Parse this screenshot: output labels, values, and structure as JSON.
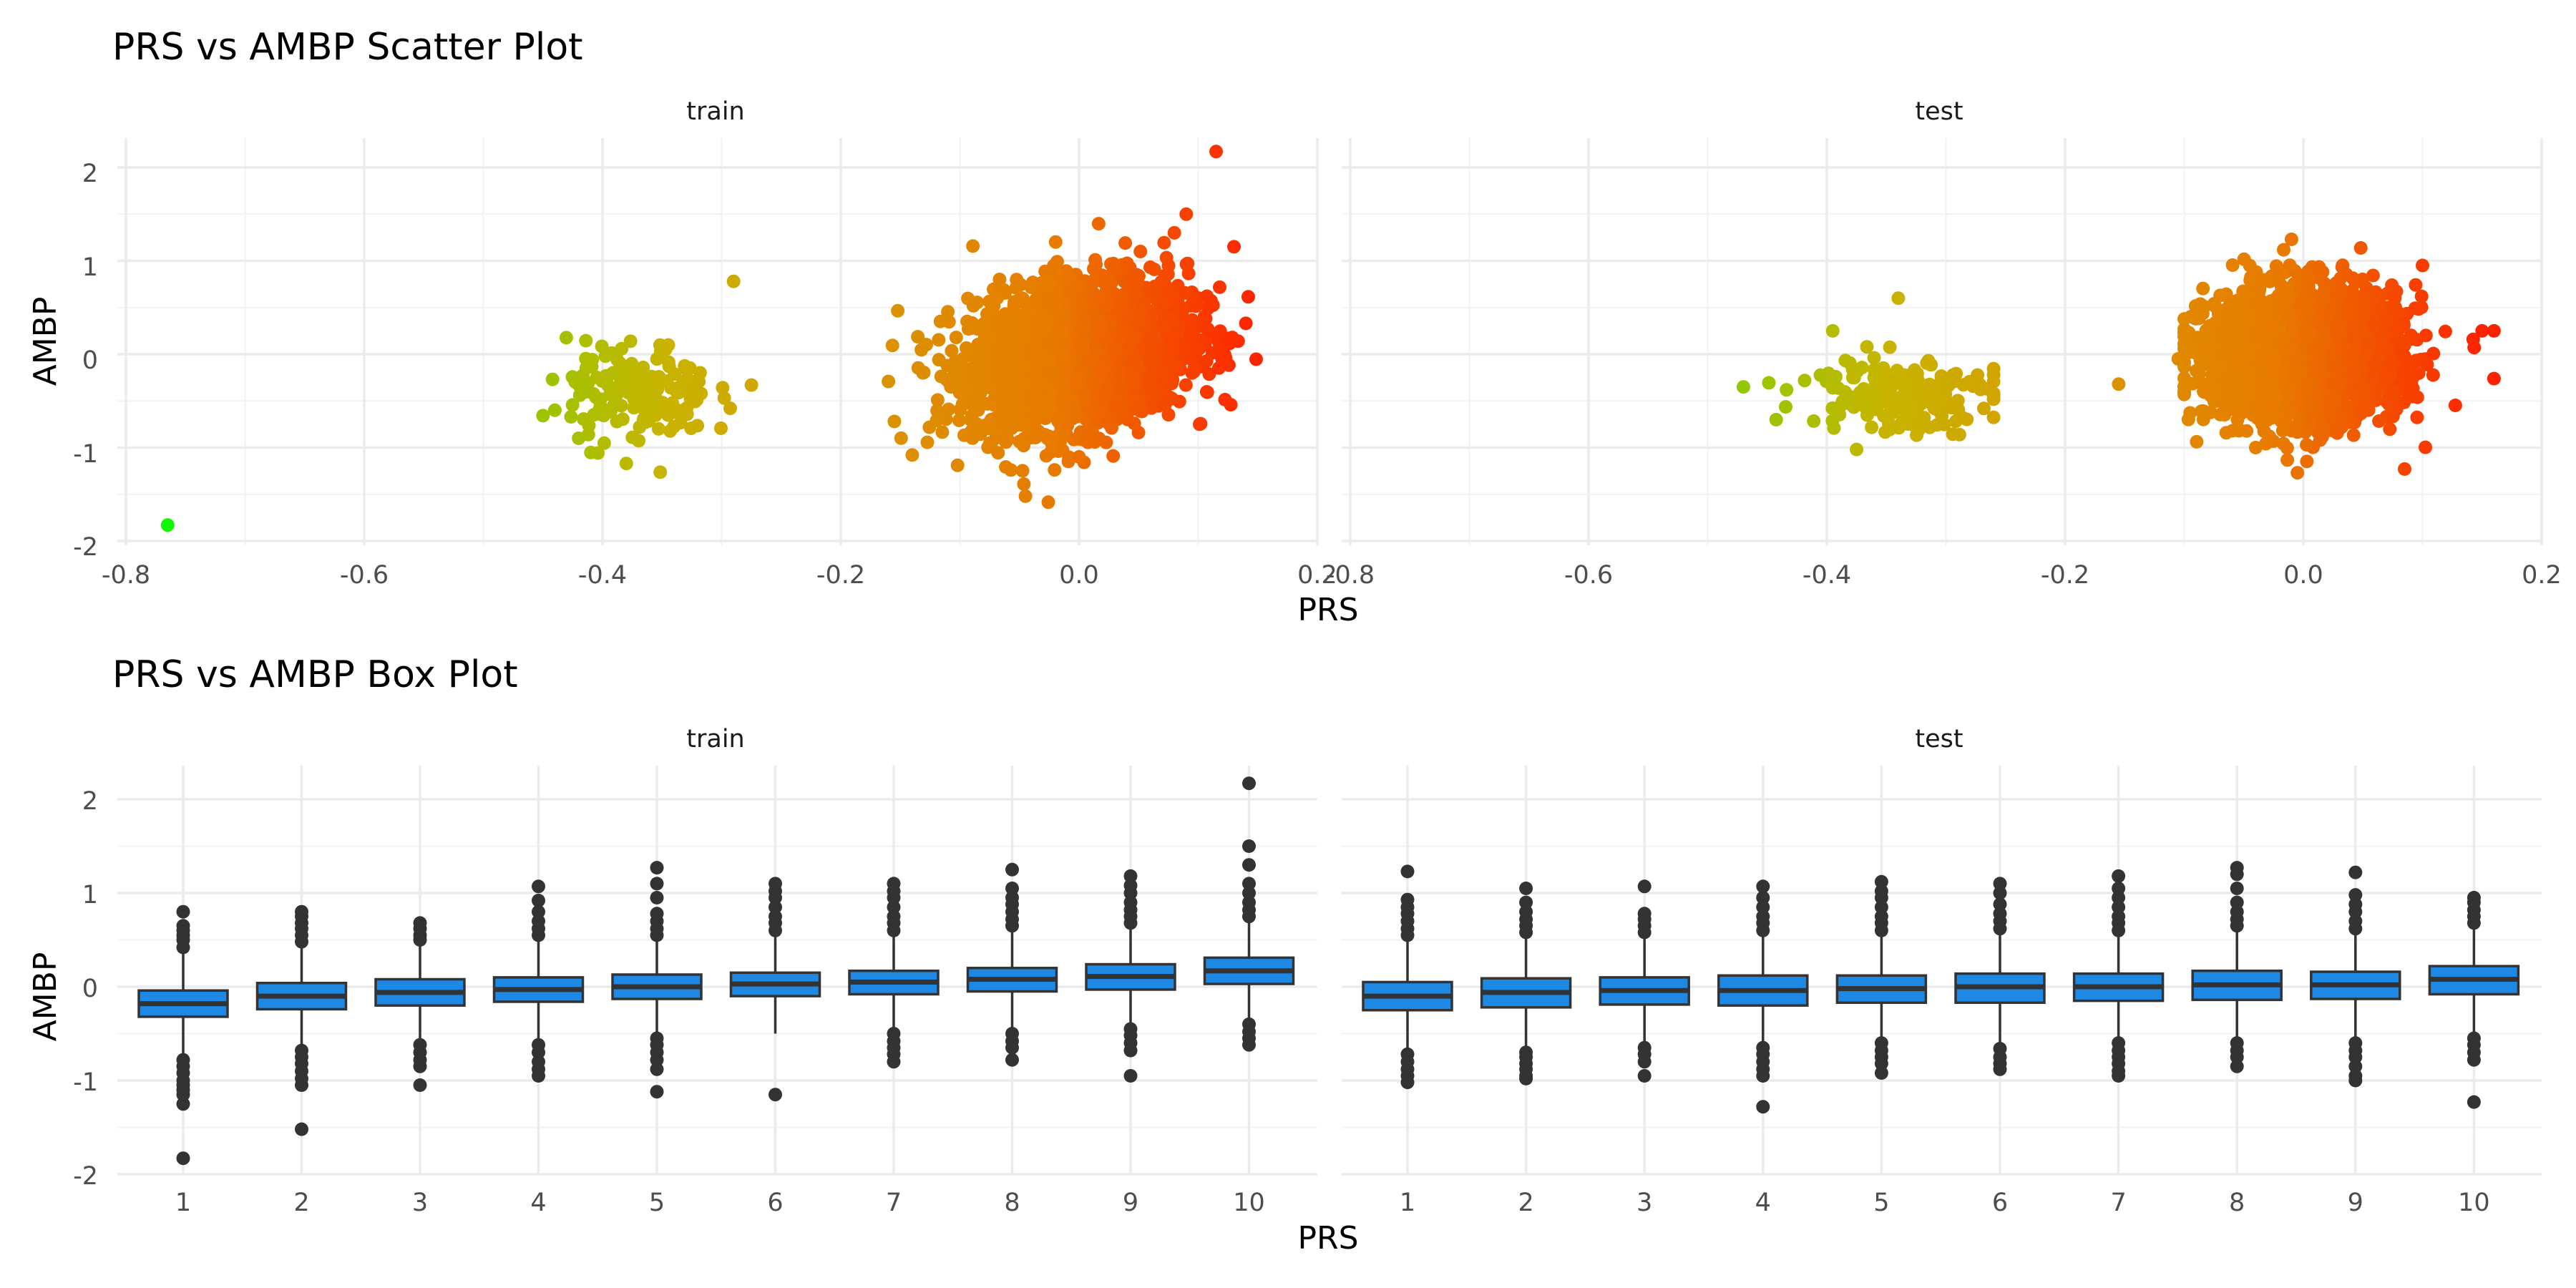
{
  "chart_data": [
    {
      "type": "scatter",
      "title": "PRS vs AMBP Scatter Plot",
      "xlabel": "PRS",
      "ylabel": "AMBP",
      "xlim": [
        -0.8,
        0.2
      ],
      "ylim": [
        -2,
        2
      ],
      "x_ticks": [
        "-0.8",
        "-0.6",
        "-0.4",
        "-0.2",
        "0.0",
        "0.2"
      ],
      "y_ticks": [
        "-2",
        "-1",
        "0",
        "1",
        "2"
      ],
      "grid": true,
      "color_gradient": [
        "#00ff00",
        "#c8b400",
        "#e87a00",
        "#ff2200"
      ],
      "panels": [
        {
          "label": "train",
          "clusters": [
            {
              "description": "main",
              "x_mean": 0.0,
              "x_sd": 0.045,
              "y_mean": 0.0,
              "y_sd": 0.38,
              "slope": 2.2,
              "x_range": [
                -0.16,
                0.15
              ]
            },
            {
              "description": "secondary",
              "x_mean": -0.37,
              "x_sd": 0.03,
              "y_mean": -0.42,
              "y_sd": 0.27,
              "x_range": [
                -0.45,
                -0.27
              ]
            }
          ],
          "points": [
            [
              -0.765,
              -1.83
            ],
            [
              0.115,
              2.17
            ],
            [
              0.09,
              1.5
            ],
            [
              -0.29,
              0.78
            ],
            [
              -0.045,
              -1.52
            ],
            [
              -0.38,
              -1.17
            ],
            [
              -0.14,
              -1.08
            ],
            [
              -0.275,
              -0.33
            ],
            [
              0.14,
              0.33
            ],
            [
              0.13,
              1.15
            ],
            [
              -0.44,
              -0.6
            ],
            [
              0.0,
              -1.1
            ],
            [
              -0.155,
              -0.72
            ],
            [
              0.12,
              -0.05
            ],
            [
              0.08,
              1.3
            ],
            [
              -0.42,
              -0.9
            ]
          ]
        },
        {
          "label": "test",
          "clusters": [
            {
              "description": "main",
              "x_mean": 0.0,
              "x_sd": 0.04,
              "y_mean": 0.0,
              "y_sd": 0.34,
              "slope": 0.3,
              "x_range": [
                -0.1,
                0.16
              ]
            },
            {
              "description": "secondary",
              "x_mean": -0.34,
              "x_sd": 0.04,
              "y_mean": -0.42,
              "y_sd": 0.22,
              "x_range": [
                -0.47,
                -0.26
              ]
            }
          ],
          "points": [
            [
              -0.005,
              -1.27
            ],
            [
              0.085,
              -1.23
            ],
            [
              -0.34,
              0.6
            ],
            [
              -0.375,
              -1.02
            ],
            [
              -0.47,
              -0.35
            ],
            [
              -0.26,
              -0.22
            ],
            [
              -0.155,
              -0.32
            ],
            [
              0.16,
              0.25
            ],
            [
              0.15,
              0.25
            ],
            [
              -0.395,
              0.25
            ],
            [
              -0.01,
              1.23
            ],
            [
              0.1,
              0.95
            ],
            [
              -0.105,
              -0.05
            ],
            [
              -0.04,
              -1.0
            ]
          ]
        }
      ]
    },
    {
      "type": "box",
      "title": "PRS vs AMBP Box Plot",
      "xlabel": "PRS",
      "ylabel": "AMBP",
      "categories": [
        "1",
        "2",
        "3",
        "4",
        "5",
        "6",
        "7",
        "8",
        "9",
        "10"
      ],
      "ylim": [
        -2,
        2
      ],
      "y_ticks": [
        "-2",
        "-1",
        "0",
        "1",
        "2"
      ],
      "grid": true,
      "box_fill": "#1e88e5",
      "panels": [
        {
          "label": "train",
          "boxes": [
            {
              "q1": -0.32,
              "median": -0.18,
              "q3": -0.04,
              "whisker_low": -0.72,
              "whisker_high": 0.35,
              "outliers_high": [
                0.42,
                0.5,
                0.55,
                0.6,
                0.65,
                0.8
              ],
              "outliers_low": [
                -0.78,
                -0.85,
                -0.92,
                -1.0,
                -1.05,
                -1.1,
                -1.15,
                -1.25,
                -1.83
              ]
            },
            {
              "q1": -0.24,
              "median": -0.1,
              "q3": 0.04,
              "whisker_low": -0.62,
              "whisker_high": 0.42,
              "outliers_high": [
                0.48,
                0.55,
                0.62,
                0.68,
                0.75,
                0.8
              ],
              "outliers_low": [
                -0.68,
                -0.75,
                -0.82,
                -0.9,
                -0.98,
                -1.05,
                -1.52
              ]
            },
            {
              "q1": -0.2,
              "median": -0.06,
              "q3": 0.08,
              "whisker_low": -0.55,
              "whisker_high": 0.45,
              "outliers_high": [
                0.5,
                0.55,
                0.62,
                0.68
              ],
              "outliers_low": [
                -0.62,
                -0.7,
                -0.78,
                -0.85,
                -1.05
              ]
            },
            {
              "q1": -0.16,
              "median": -0.03,
              "q3": 0.1,
              "whisker_low": -0.55,
              "whisker_high": 0.48,
              "outliers_high": [
                0.55,
                0.62,
                0.7,
                0.8,
                0.92,
                1.07
              ],
              "outliers_low": [
                -0.62,
                -0.7,
                -0.8,
                -0.88,
                -0.95
              ]
            },
            {
              "q1": -0.13,
              "median": 0.0,
              "q3": 0.13,
              "whisker_low": -0.5,
              "whisker_high": 0.5,
              "outliers_high": [
                0.55,
                0.62,
                0.7,
                0.78,
                0.95,
                1.1,
                1.27
              ],
              "outliers_low": [
                -0.55,
                -0.62,
                -0.7,
                -0.78,
                -0.88,
                -1.12
              ]
            },
            {
              "q1": -0.1,
              "median": 0.03,
              "q3": 0.15,
              "whisker_low": -0.5,
              "whisker_high": 0.55,
              "outliers_high": [
                0.6,
                0.68,
                0.75,
                0.85,
                0.95,
                1.02,
                1.1
              ],
              "outliers_low": [
                -1.15
              ]
            },
            {
              "q1": -0.08,
              "median": 0.05,
              "q3": 0.17,
              "whisker_low": -0.45,
              "whisker_high": 0.55,
              "outliers_high": [
                0.6,
                0.68,
                0.75,
                0.85,
                0.95,
                1.02,
                1.1
              ],
              "outliers_low": [
                -0.5,
                -0.58,
                -0.65,
                -0.72,
                -0.8
              ]
            },
            {
              "q1": -0.05,
              "median": 0.08,
              "q3": 0.2,
              "whisker_low": -0.45,
              "whisker_high": 0.6,
              "outliers_high": [
                0.65,
                0.72,
                0.8,
                0.88,
                0.95,
                1.05,
                1.25
              ],
              "outliers_low": [
                -0.5,
                -0.58,
                -0.65,
                -0.78
              ]
            },
            {
              "q1": -0.03,
              "median": 0.11,
              "q3": 0.24,
              "whisker_low": -0.4,
              "whisker_high": 0.62,
              "outliers_high": [
                0.68,
                0.75,
                0.82,
                0.9,
                1.0,
                1.08,
                1.18
              ],
              "outliers_low": [
                -0.45,
                -0.52,
                -0.6,
                -0.68,
                -0.95
              ]
            },
            {
              "q1": 0.03,
              "median": 0.17,
              "q3": 0.31,
              "whisker_low": -0.35,
              "whisker_high": 0.7,
              "outliers_high": [
                0.75,
                0.82,
                0.9,
                1.0,
                1.1,
                1.3,
                1.5,
                2.17
              ],
              "outliers_low": [
                -0.4,
                -0.48,
                -0.55,
                -0.62
              ]
            }
          ]
        },
        {
          "label": "test",
          "boxes": [
            {
              "q1": -0.25,
              "median": -0.1,
              "q3": 0.05,
              "whisker_low": -0.68,
              "whisker_high": 0.48,
              "outliers_high": [
                0.55,
                0.62,
                0.7,
                0.78,
                0.85,
                0.93,
                1.23
              ],
              "outliers_low": [
                -0.72,
                -0.8,
                -0.88,
                -0.95,
                -1.02
              ]
            },
            {
              "q1": -0.22,
              "median": -0.06,
              "q3": 0.09,
              "whisker_low": -0.65,
              "whisker_high": 0.52,
              "outliers_high": [
                0.58,
                0.65,
                0.72,
                0.8,
                0.9,
                1.05
              ],
              "outliers_low": [
                -0.7,
                -0.75,
                -0.82,
                -0.88,
                -0.95,
                -0.98
              ]
            },
            {
              "q1": -0.19,
              "median": -0.04,
              "q3": 0.1,
              "whisker_low": -0.6,
              "whisker_high": 0.52,
              "outliers_high": [
                0.58,
                0.65,
                0.72,
                0.78,
                1.07
              ],
              "outliers_low": [
                -0.65,
                -0.72,
                -0.8,
                -0.95
              ]
            },
            {
              "q1": -0.2,
              "median": -0.04,
              "q3": 0.12,
              "whisker_low": -0.6,
              "whisker_high": 0.55,
              "outliers_high": [
                0.6,
                0.68,
                0.75,
                0.85,
                0.95,
                1.07
              ],
              "outliers_low": [
                -0.65,
                -0.72,
                -0.8,
                -0.88,
                -0.95,
                -1.28
              ]
            },
            {
              "q1": -0.17,
              "median": -0.02,
              "q3": 0.12,
              "whisker_low": -0.55,
              "whisker_high": 0.55,
              "outliers_high": [
                0.6,
                0.68,
                0.75,
                0.85,
                0.95,
                1.02,
                1.12
              ],
              "outliers_low": [
                -0.6,
                -0.68,
                -0.75,
                -0.82,
                -0.92
              ]
            },
            {
              "q1": -0.17,
              "median": 0.0,
              "q3": 0.14,
              "whisker_low": -0.6,
              "whisker_high": 0.58,
              "outliers_high": [
                0.62,
                0.7,
                0.78,
                0.88,
                1.0,
                1.1
              ],
              "outliers_low": [
                -0.66,
                -0.75,
                -0.82,
                -0.88
              ]
            },
            {
              "q1": -0.15,
              "median": 0.0,
              "q3": 0.14,
              "whisker_low": -0.55,
              "whisker_high": 0.55,
              "outliers_high": [
                0.6,
                0.68,
                0.75,
                0.85,
                0.95,
                1.05,
                1.18
              ],
              "outliers_low": [
                -0.6,
                -0.68,
                -0.75,
                -0.82,
                -0.9,
                -0.95
              ]
            },
            {
              "q1": -0.14,
              "median": 0.02,
              "q3": 0.17,
              "whisker_low": -0.55,
              "whisker_high": 0.6,
              "outliers_high": [
                0.65,
                0.72,
                0.8,
                0.9,
                1.05,
                1.2,
                1.27
              ],
              "outliers_low": [
                -0.6,
                -0.68,
                -0.75,
                -0.85
              ]
            },
            {
              "q1": -0.13,
              "median": 0.02,
              "q3": 0.16,
              "whisker_low": -0.55,
              "whisker_high": 0.58,
              "outliers_high": [
                0.62,
                0.7,
                0.8,
                0.88,
                0.98,
                1.22
              ],
              "outliers_low": [
                -0.6,
                -0.68,
                -0.75,
                -0.85,
                -0.95,
                -1.0
              ]
            },
            {
              "q1": -0.08,
              "median": 0.08,
              "q3": 0.22,
              "whisker_low": -0.5,
              "whisker_high": 0.62,
              "outliers_high": [
                0.68,
                0.75,
                0.82,
                0.9,
                0.95
              ],
              "outliers_low": [
                -0.55,
                -0.62,
                -0.7,
                -0.78,
                -1.23
              ]
            }
          ]
        }
      ]
    }
  ]
}
